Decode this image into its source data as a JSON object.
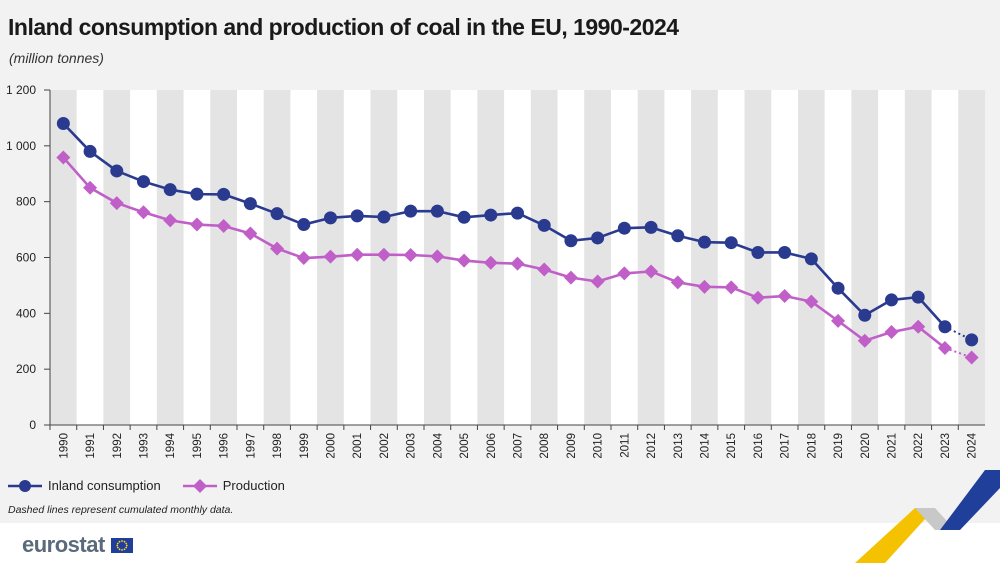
{
  "header": {
    "title": "Inland consumption and production of coal in the EU, 1990-2024",
    "subtitle": "(million tonnes)"
  },
  "legend": {
    "consumption_label": "Inland consumption",
    "production_label": "Production",
    "note": "Dashed lines represent cumulated monthly data."
  },
  "footer": {
    "brand": "eurostat"
  },
  "colors": {
    "consumption": "#2a3a8f",
    "production": "#c15fc9",
    "stripe": "#e4e4e4",
    "band": "#ffffff"
  },
  "chart_data": {
    "type": "line",
    "title": "Inland consumption and production of coal in the EU, 1990-2024",
    "ylabel": "million tonnes",
    "xlabel": "",
    "ylim": [
      0,
      1200
    ],
    "yticks": [
      0,
      200,
      400,
      600,
      800,
      1000,
      1200
    ],
    "ytick_labels": [
      "0",
      "200",
      "400",
      "600",
      "800",
      "1 000",
      "1 200"
    ],
    "categories": [
      "1990",
      "1991",
      "1992",
      "1993",
      "1994",
      "1995",
      "1996",
      "1997",
      "1998",
      "1999",
      "2000",
      "2001",
      "2002",
      "2003",
      "2004",
      "2005",
      "2006",
      "2007",
      "2008",
      "2009",
      "2010",
      "2011",
      "2012",
      "2013",
      "2014",
      "2015",
      "2016",
      "2017",
      "2018",
      "2019",
      "2020",
      "2021",
      "2022",
      "2023",
      "2024"
    ],
    "series": [
      {
        "name": "Inland consumption",
        "marker": "circle",
        "dashed_from": "2023",
        "values": [
          1080,
          980,
          910,
          872,
          843,
          827,
          826,
          793,
          757,
          718,
          742,
          749,
          745,
          766,
          766,
          744,
          752,
          759,
          715,
          660,
          670,
          705,
          708,
          678,
          655,
          653,
          618,
          618,
          595,
          490,
          393,
          448,
          458,
          352,
          305
        ]
      },
      {
        "name": "Production",
        "marker": "diamond",
        "dashed_from": "2023",
        "values": [
          958,
          850,
          795,
          762,
          733,
          718,
          713,
          686,
          632,
          598,
          603,
          610,
          610,
          609,
          604,
          589,
          581,
          578,
          557,
          528,
          514,
          543,
          550,
          511,
          495,
          493,
          456,
          462,
          442,
          373,
          302,
          333,
          352,
          276,
          242
        ]
      }
    ]
  }
}
